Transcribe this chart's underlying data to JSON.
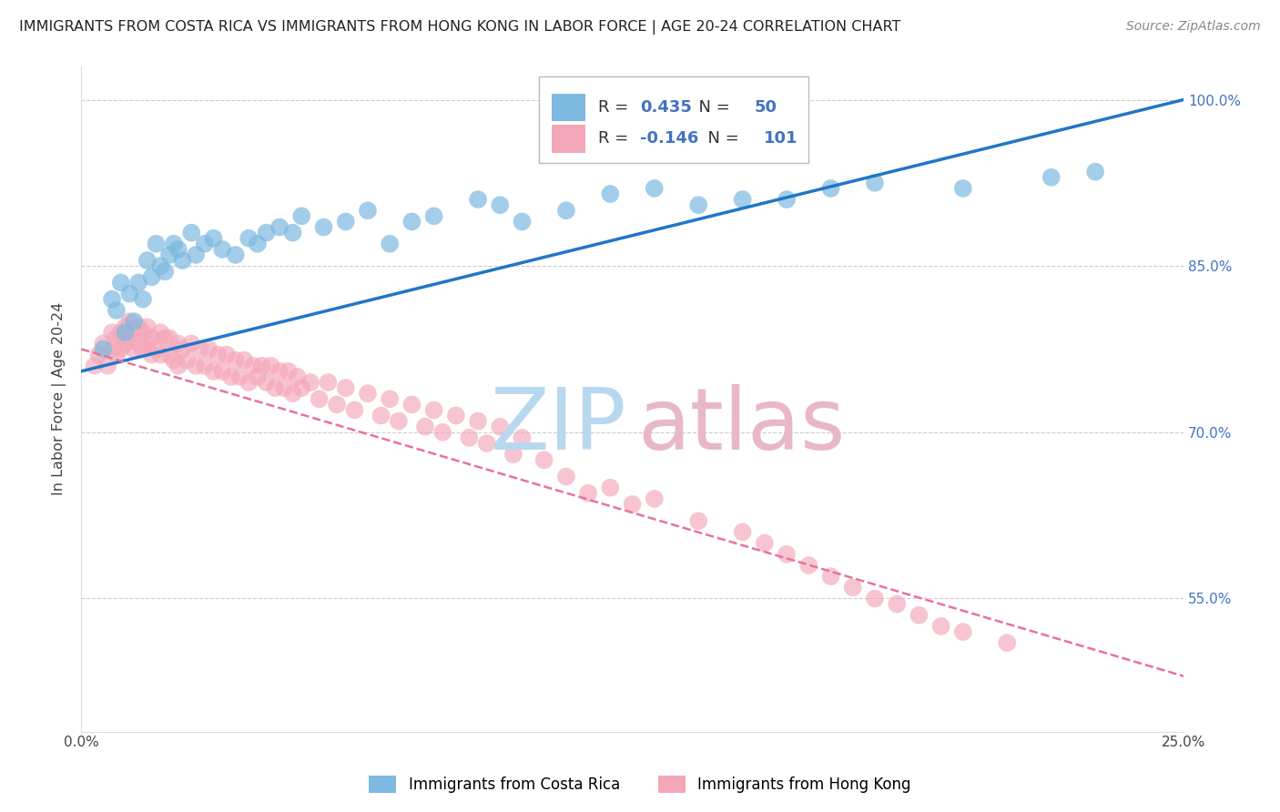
{
  "title": "IMMIGRANTS FROM COSTA RICA VS IMMIGRANTS FROM HONG KONG IN LABOR FORCE | AGE 20-24 CORRELATION CHART",
  "source": "Source: ZipAtlas.com",
  "ylabel": "In Labor Force | Age 20-24",
  "legend_label1": "Immigrants from Costa Rica",
  "legend_label2": "Immigrants from Hong Kong",
  "R1": 0.435,
  "N1": 50,
  "R2": -0.146,
  "N2": 101,
  "color1": "#7db9e0",
  "color2": "#f4a7b9",
  "color1_line": "#2176c7",
  "color2_line": "#e8729a",
  "watermark_zip_color": "#b8d8ef",
  "watermark_atlas_color": "#e8b8c8",
  "xlim": [
    0.0,
    0.25
  ],
  "ylim": [
    0.43,
    1.03
  ],
  "yticks": [
    0.55,
    0.7,
    0.85,
    1.0
  ],
  "ytick_labels": [
    "55.0%",
    "70.0%",
    "85.0%",
    "100.0%"
  ],
  "xticks": [
    0.0,
    0.05,
    0.1,
    0.15,
    0.2,
    0.25
  ],
  "xtick_labels": [
    "0.0%",
    "",
    "",
    "",
    "",
    "25.0%"
  ],
  "blue_x": [
    0.005,
    0.007,
    0.008,
    0.009,
    0.01,
    0.011,
    0.012,
    0.013,
    0.014,
    0.015,
    0.016,
    0.017,
    0.018,
    0.019,
    0.02,
    0.021,
    0.022,
    0.023,
    0.025,
    0.026,
    0.028,
    0.03,
    0.032,
    0.035,
    0.038,
    0.04,
    0.042,
    0.045,
    0.048,
    0.05,
    0.055,
    0.06,
    0.065,
    0.07,
    0.075,
    0.08,
    0.09,
    0.095,
    0.1,
    0.11,
    0.12,
    0.13,
    0.14,
    0.15,
    0.16,
    0.17,
    0.18,
    0.2,
    0.22,
    0.23
  ],
  "blue_y": [
    0.775,
    0.82,
    0.81,
    0.835,
    0.79,
    0.825,
    0.8,
    0.835,
    0.82,
    0.855,
    0.84,
    0.87,
    0.85,
    0.845,
    0.86,
    0.87,
    0.865,
    0.855,
    0.88,
    0.86,
    0.87,
    0.875,
    0.865,
    0.86,
    0.875,
    0.87,
    0.88,
    0.885,
    0.88,
    0.895,
    0.885,
    0.89,
    0.9,
    0.87,
    0.89,
    0.895,
    0.91,
    0.905,
    0.89,
    0.9,
    0.915,
    0.92,
    0.905,
    0.91,
    0.91,
    0.92,
    0.925,
    0.92,
    0.93,
    0.935
  ],
  "pink_x": [
    0.003,
    0.004,
    0.005,
    0.006,
    0.007,
    0.007,
    0.008,
    0.008,
    0.009,
    0.009,
    0.01,
    0.01,
    0.011,
    0.011,
    0.012,
    0.012,
    0.013,
    0.013,
    0.014,
    0.014,
    0.015,
    0.015,
    0.016,
    0.016,
    0.017,
    0.018,
    0.018,
    0.019,
    0.02,
    0.02,
    0.021,
    0.022,
    0.022,
    0.023,
    0.024,
    0.025,
    0.026,
    0.027,
    0.028,
    0.029,
    0.03,
    0.031,
    0.032,
    0.033,
    0.034,
    0.035,
    0.036,
    0.037,
    0.038,
    0.039,
    0.04,
    0.041,
    0.042,
    0.043,
    0.044,
    0.045,
    0.046,
    0.047,
    0.048,
    0.049,
    0.05,
    0.052,
    0.054,
    0.056,
    0.058,
    0.06,
    0.062,
    0.065,
    0.068,
    0.07,
    0.072,
    0.075,
    0.078,
    0.08,
    0.082,
    0.085,
    0.088,
    0.09,
    0.092,
    0.095,
    0.098,
    0.1,
    0.105,
    0.11,
    0.115,
    0.12,
    0.125,
    0.13,
    0.14,
    0.15,
    0.155,
    0.16,
    0.165,
    0.17,
    0.175,
    0.18,
    0.185,
    0.19,
    0.195,
    0.2,
    0.21
  ],
  "pink_y": [
    0.76,
    0.77,
    0.78,
    0.76,
    0.775,
    0.79,
    0.77,
    0.785,
    0.775,
    0.79,
    0.78,
    0.795,
    0.785,
    0.8,
    0.775,
    0.79,
    0.78,
    0.795,
    0.775,
    0.79,
    0.78,
    0.795,
    0.77,
    0.785,
    0.775,
    0.79,
    0.77,
    0.785,
    0.77,
    0.785,
    0.765,
    0.78,
    0.76,
    0.775,
    0.765,
    0.78,
    0.76,
    0.775,
    0.76,
    0.775,
    0.755,
    0.77,
    0.755,
    0.77,
    0.75,
    0.765,
    0.75,
    0.765,
    0.745,
    0.76,
    0.75,
    0.76,
    0.745,
    0.76,
    0.74,
    0.755,
    0.74,
    0.755,
    0.735,
    0.75,
    0.74,
    0.745,
    0.73,
    0.745,
    0.725,
    0.74,
    0.72,
    0.735,
    0.715,
    0.73,
    0.71,
    0.725,
    0.705,
    0.72,
    0.7,
    0.715,
    0.695,
    0.71,
    0.69,
    0.705,
    0.68,
    0.695,
    0.675,
    0.66,
    0.645,
    0.65,
    0.635,
    0.64,
    0.62,
    0.61,
    0.6,
    0.59,
    0.58,
    0.57,
    0.56,
    0.55,
    0.545,
    0.535,
    0.525,
    0.52,
    0.51
  ],
  "blue_trend_x": [
    0.0,
    0.25
  ],
  "blue_trend_y": [
    0.755,
    1.0
  ],
  "pink_trend_x": [
    0.0,
    0.25
  ],
  "pink_trend_y": [
    0.775,
    0.48
  ]
}
